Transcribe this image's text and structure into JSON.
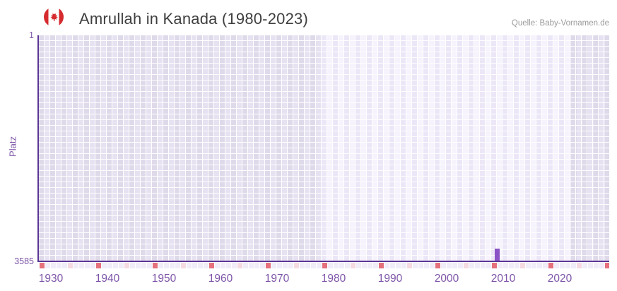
{
  "header": {
    "title": "Amrullah in Kanada (1980-2023)",
    "flag_icon": "canada-flag-icon",
    "source": "Quelle: Baby-Vornamen.de"
  },
  "chart_data": {
    "type": "bar",
    "title": "Amrullah in Kanada (1980-2023)",
    "ylabel": "Platz",
    "y_axis": {
      "top_tick": "1",
      "bottom_tick": "3585",
      "min": 1,
      "max": 3585,
      "inverted": true
    },
    "x_axis": {
      "ticks": [
        1930,
        1940,
        1950,
        1960,
        1970,
        1980,
        1990,
        2000,
        2010,
        2020
      ],
      "range_start": 1928,
      "range_end": 2029
    },
    "highlight_range": {
      "start": 1980,
      "end": 2023
    },
    "series": [
      {
        "name": "Platz",
        "points": [
          {
            "x": 2009,
            "y": 3585
          }
        ]
      }
    ],
    "legend": null,
    "grid": true,
    "colors": {
      "bar": "#8c53c6",
      "axis": "#5b3696",
      "tick_label": "#7d55a8",
      "title": "#3f3f3f",
      "source": "#9a9a9a",
      "band_dark_a": "#dfdaea",
      "band_dark_b": "#e7e2f1",
      "band_light_a": "#ece7f7",
      "band_light_b": "#f6f3fd",
      "strip_red": "#e4717c",
      "strip_pink": "#f5dae2",
      "flag_red": "#d52b2e"
    }
  }
}
